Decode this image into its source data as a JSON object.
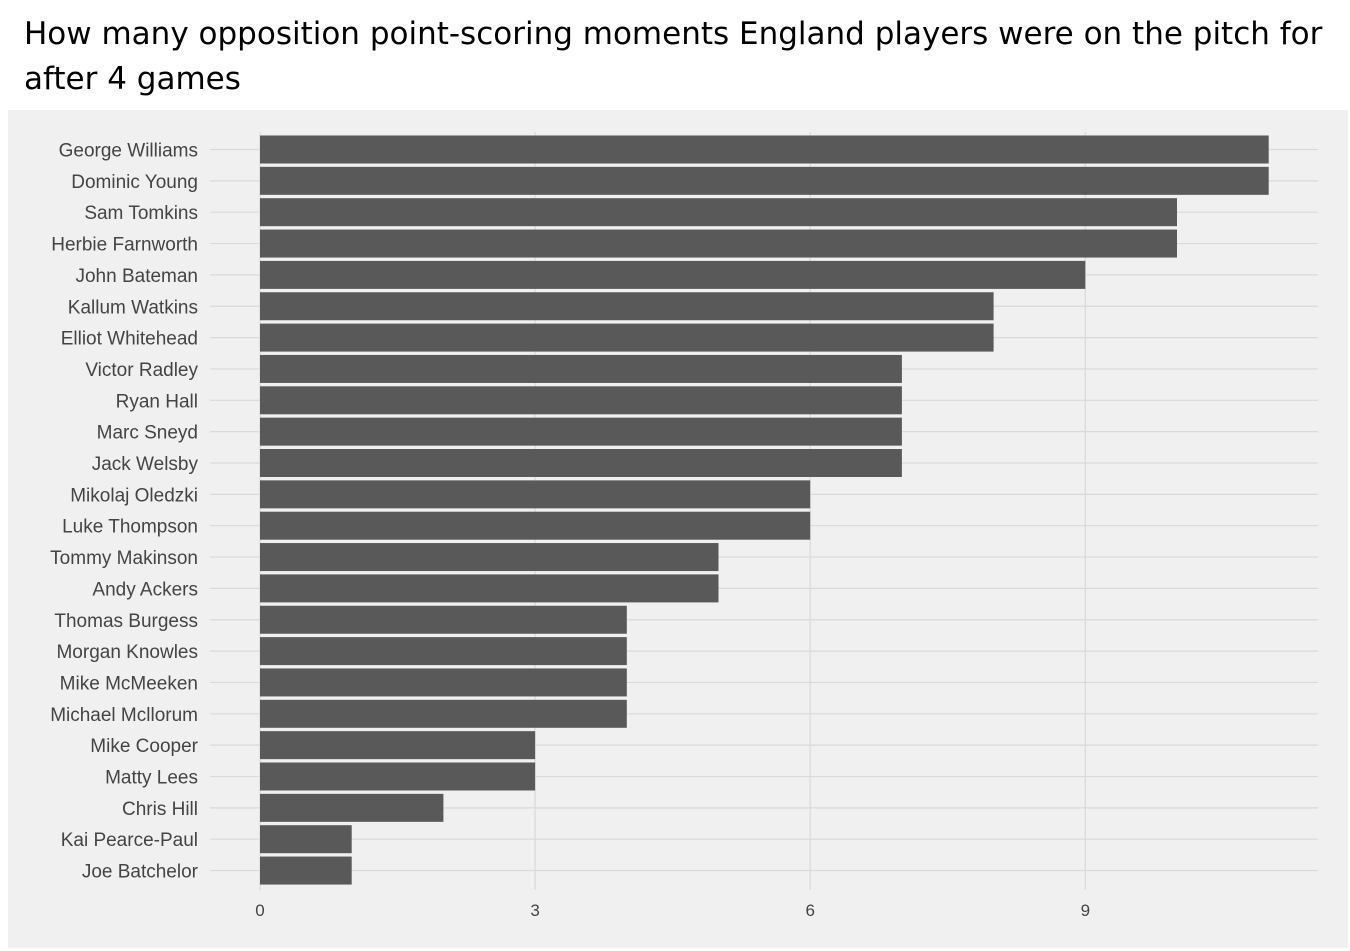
{
  "chart_data": {
    "type": "bar",
    "orientation": "horizontal",
    "title": "How many opposition point-scoring moments England players were on the pitch for after 4 games",
    "xlabel": "",
    "ylabel": "",
    "categories": [
      "George Williams",
      "Dominic Young",
      "Sam Tomkins",
      "Herbie Farnworth",
      "John Bateman",
      "Kallum Watkins",
      "Elliot Whitehead",
      "Victor Radley",
      "Ryan Hall",
      "Marc Sneyd",
      "Jack Welsby",
      "Mikolaj Oledzki",
      "Luke Thompson",
      "Tommy Makinson",
      "Andy Ackers",
      "Thomas Burgess",
      "Morgan Knowles",
      "Mike McMeeken",
      "Michael Mcllorum",
      "Mike Cooper",
      "Matty Lees",
      "Chris Hill",
      "Kai Pearce-Paul",
      "Joe Batchelor"
    ],
    "values": [
      11,
      11,
      10,
      10,
      9,
      8,
      8,
      7,
      7,
      7,
      7,
      6,
      6,
      5,
      5,
      4,
      4,
      4,
      4,
      3,
      3,
      2,
      1,
      1
    ],
    "xlim": [
      0,
      11
    ],
    "x_ticks": [
      "0",
      "3",
      "6",
      "9"
    ],
    "grid": true,
    "legend": "none",
    "colors": {
      "bar": "#595959",
      "panel_background": "#f0f0f0",
      "grid": "#d9d9d9",
      "text": "#444444"
    }
  }
}
